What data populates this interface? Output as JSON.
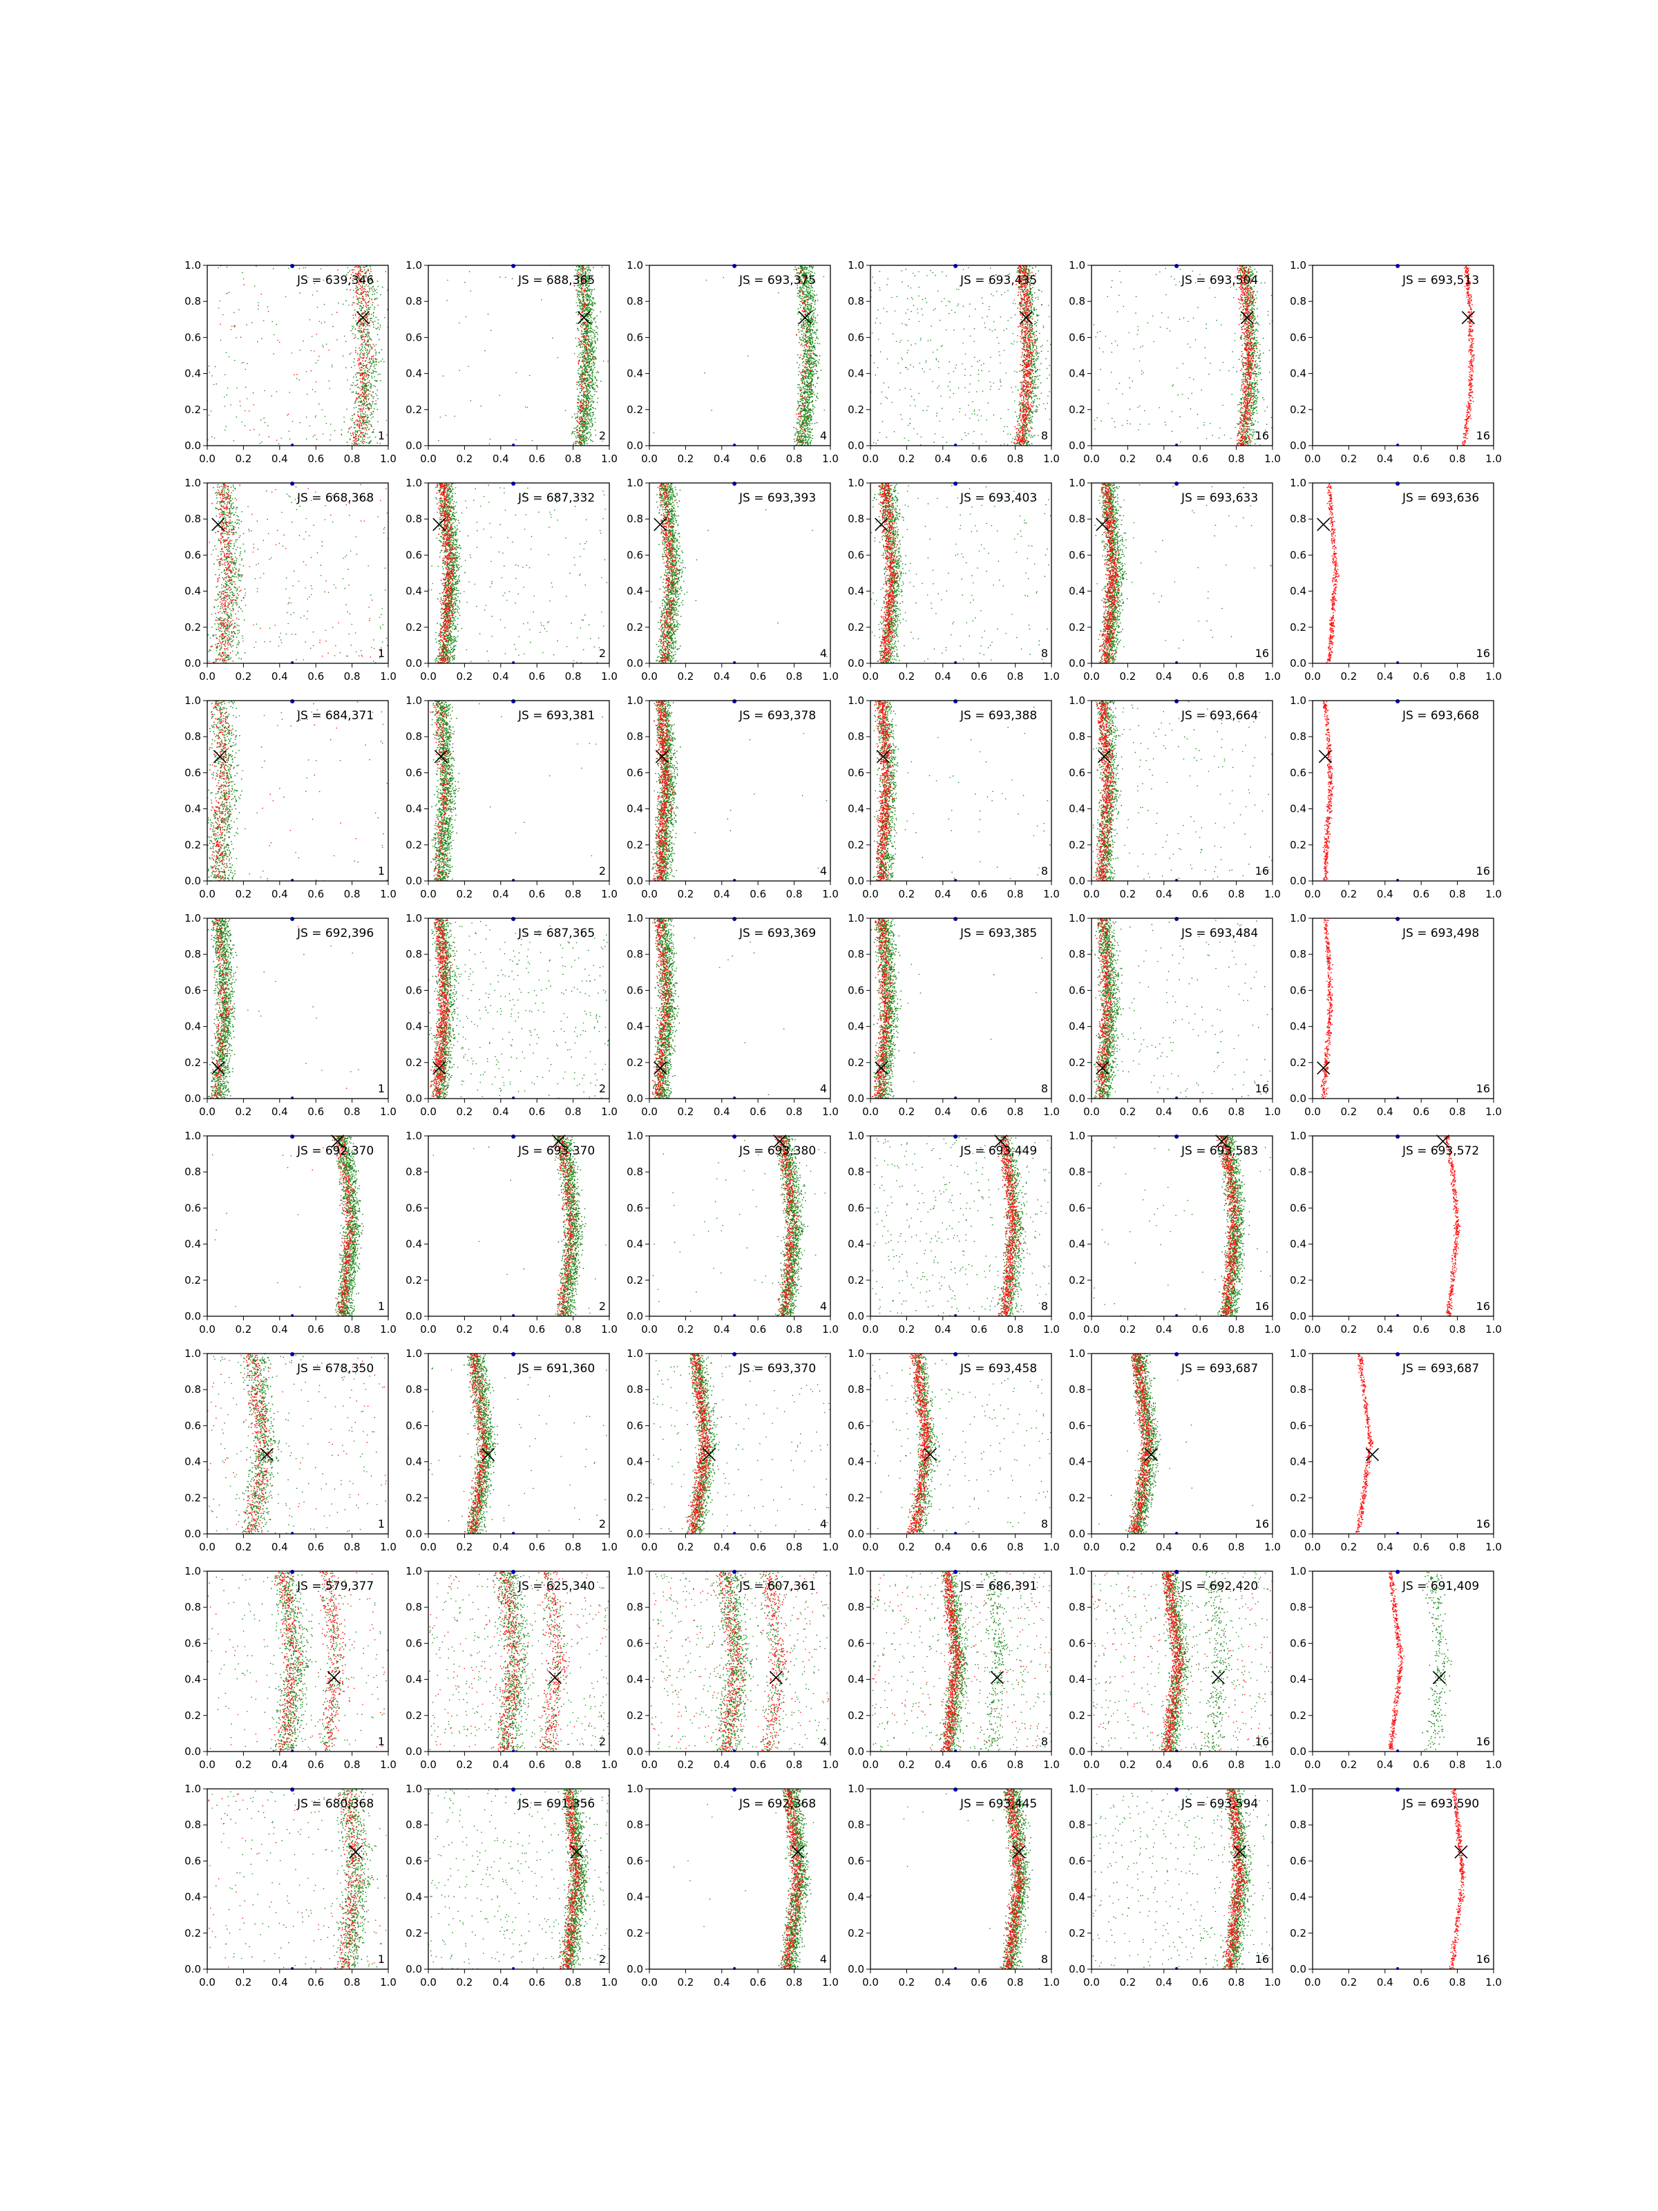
{
  "chart_data": {
    "type": "scatter",
    "grid": false,
    "xlim": [
      0.0,
      1.0
    ],
    "ylim": [
      0.0,
      1.0
    ],
    "ticks": [
      "0.0",
      "0.2",
      "0.4",
      "0.6",
      "0.8",
      "1.0"
    ],
    "colors": {
      "green": "#1a8a1a",
      "red": "#ff1010",
      "marker": "#000000",
      "blue": "#0000cc"
    },
    "columns": [
      "1",
      "2",
      "4",
      "8",
      "16",
      "16"
    ],
    "rows": [
      {
        "cross": [
          0.86,
          0.71
        ],
        "curve": [
          0.83,
          0.86,
          0.87,
          0.86,
          0.84
        ],
        "second": null,
        "panels": [
          {
            "js": "JS = 639,346",
            "n": "1",
            "g": 0.9,
            "r": 0.9,
            "density": "sparse",
            "bg": "mid"
          },
          {
            "js": "JS = 688,365",
            "n": "2",
            "g": 1.0,
            "r": 0.3,
            "density": "dense",
            "bg": "low"
          },
          {
            "js": "JS = 693,375",
            "n": "4",
            "g": 1.0,
            "r": 0.2,
            "density": "dense",
            "bg": "vlow"
          },
          {
            "js": "JS = 693,435",
            "n": "8",
            "g": 0.6,
            "r": 1.0,
            "density": "dense",
            "bg": "high"
          },
          {
            "js": "JS = 693,504",
            "n": "16",
            "g": 0.7,
            "r": 0.9,
            "density": "dense",
            "bg": "mid"
          },
          {
            "js": "JS = 693,513",
            "n": "16",
            "g": 0.0,
            "r": 1.0,
            "density": "thin",
            "bg": "none"
          }
        ]
      },
      {
        "cross": [
          0.06,
          0.77
        ],
        "curve": [
          0.08,
          0.1,
          0.12,
          0.1,
          0.08
        ],
        "second": null,
        "panels": [
          {
            "js": "JS = 668,368",
            "n": "1",
            "g": 0.9,
            "r": 0.9,
            "density": "sparse",
            "bg": "mid"
          },
          {
            "js": "JS = 687,332",
            "n": "2",
            "g": 1.0,
            "r": 0.9,
            "density": "dense",
            "bg": "mid"
          },
          {
            "js": "JS = 693,393",
            "n": "4",
            "g": 1.0,
            "r": 0.6,
            "density": "dense",
            "bg": "vlow"
          },
          {
            "js": "JS = 693,403",
            "n": "8",
            "g": 0.8,
            "r": 1.0,
            "density": "dense",
            "bg": "mid"
          },
          {
            "js": "JS = 693,633",
            "n": "16",
            "g": 1.0,
            "r": 1.0,
            "density": "dense",
            "bg": "low"
          },
          {
            "js": "JS = 693,636",
            "n": "16",
            "g": 0.0,
            "r": 1.0,
            "density": "thin",
            "bg": "none"
          }
        ]
      },
      {
        "cross": [
          0.07,
          0.69
        ],
        "curve": [
          0.06,
          0.07,
          0.09,
          0.08,
          0.06
        ],
        "second": null,
        "panels": [
          {
            "js": "JS = 684,371",
            "n": "1",
            "g": 1.0,
            "r": 0.8,
            "density": "sparse",
            "bg": "low"
          },
          {
            "js": "JS = 693,381",
            "n": "2",
            "g": 1.0,
            "r": 0.4,
            "density": "dense",
            "bg": "vlow"
          },
          {
            "js": "JS = 693,378",
            "n": "4",
            "g": 1.0,
            "r": 1.0,
            "density": "dense",
            "bg": "vlow"
          },
          {
            "js": "JS = 693,388",
            "n": "8",
            "g": 0.7,
            "r": 1.0,
            "density": "dense",
            "bg": "low"
          },
          {
            "js": "JS = 693,664",
            "n": "16",
            "g": 0.7,
            "r": 1.0,
            "density": "dense",
            "bg": "mid"
          },
          {
            "js": "JS = 693,668",
            "n": "16",
            "g": 0.0,
            "r": 1.0,
            "density": "thin",
            "bg": "none"
          }
        ]
      },
      {
        "cross": [
          0.06,
          0.17
        ],
        "curve": [
          0.05,
          0.07,
          0.09,
          0.08,
          0.06
        ],
        "second": null,
        "panels": [
          {
            "js": "JS = 692,396",
            "n": "1",
            "g": 1.0,
            "r": 0.4,
            "density": "dense",
            "bg": "vlow"
          },
          {
            "js": "JS = 687,365",
            "n": "2",
            "g": 0.8,
            "r": 1.0,
            "density": "dense",
            "bg": "high"
          },
          {
            "js": "JS = 693,369",
            "n": "4",
            "g": 1.0,
            "r": 0.7,
            "density": "dense",
            "bg": "vlow"
          },
          {
            "js": "JS = 693,385",
            "n": "8",
            "g": 1.0,
            "r": 0.8,
            "density": "dense",
            "bg": "vlow"
          },
          {
            "js": "JS = 693,484",
            "n": "16",
            "g": 1.0,
            "r": 0.7,
            "density": "dense",
            "bg": "mid"
          },
          {
            "js": "JS = 693,498",
            "n": "16",
            "g": 0.0,
            "r": 1.0,
            "density": "thin",
            "bg": "none"
          }
        ]
      },
      {
        "cross": [
          0.72,
          0.97
        ],
        "curve": [
          0.74,
          0.77,
          0.79,
          0.77,
          0.73
        ],
        "second": null,
        "panels": [
          {
            "js": "JS = 692,370",
            "n": "1",
            "g": 1.0,
            "r": 0.6,
            "density": "dense",
            "bg": "vlow"
          },
          {
            "js": "JS = 693,370",
            "n": "2",
            "g": 1.0,
            "r": 0.6,
            "density": "dense",
            "bg": "vlow"
          },
          {
            "js": "JS = 693,380",
            "n": "4",
            "g": 1.0,
            "r": 0.7,
            "density": "dense",
            "bg": "low"
          },
          {
            "js": "JS = 693,449",
            "n": "8",
            "g": 0.6,
            "r": 1.0,
            "density": "dense",
            "bg": "high"
          },
          {
            "js": "JS = 693,583",
            "n": "16",
            "g": 1.0,
            "r": 0.9,
            "density": "dense",
            "bg": "low"
          },
          {
            "js": "JS = 693,572",
            "n": "16",
            "g": 0.0,
            "r": 1.0,
            "density": "thin",
            "bg": "none"
          }
        ]
      },
      {
        "cross": [
          0.33,
          0.44
        ],
        "curve": [
          0.24,
          0.28,
          0.31,
          0.28,
          0.25
        ],
        "second": null,
        "panels": [
          {
            "js": "JS = 678,350",
            "n": "1",
            "g": 1.0,
            "r": 0.9,
            "density": "sparse",
            "bg": "mid"
          },
          {
            "js": "JS = 691,360",
            "n": "2",
            "g": 1.0,
            "r": 0.7,
            "density": "dense",
            "bg": "low"
          },
          {
            "js": "JS = 693,370",
            "n": "4",
            "g": 0.8,
            "r": 1.0,
            "density": "dense",
            "bg": "mid"
          },
          {
            "js": "JS = 693,458",
            "n": "8",
            "g": 0.6,
            "r": 1.0,
            "density": "dense",
            "bg": "mid"
          },
          {
            "js": "JS = 693,687",
            "n": "16",
            "g": 1.0,
            "r": 1.0,
            "density": "dense",
            "bg": "vlow"
          },
          {
            "js": "JS = 693,687",
            "n": "16",
            "g": 0.0,
            "r": 1.0,
            "density": "thin",
            "bg": "none"
          }
        ]
      },
      {
        "cross": [
          0.7,
          0.41
        ],
        "curve": [
          0.42,
          0.45,
          0.48,
          0.45,
          0.42
        ],
        "second": [
          0.66,
          0.69,
          0.72,
          0.69,
          0.66
        ],
        "panels": [
          {
            "js": "JS = 579,377",
            "n": "1",
            "g": 1.0,
            "r": 0.9,
            "density": "sparse",
            "bg": "mid"
          },
          {
            "js": "JS = 625,340",
            "n": "2",
            "g": 1.0,
            "r": 1.0,
            "density": "sparse",
            "bg": "high"
          },
          {
            "js": "JS = 607,361",
            "n": "4",
            "g": 1.0,
            "r": 1.0,
            "density": "sparse",
            "bg": "high"
          },
          {
            "js": "JS = 686,391",
            "n": "8",
            "g": 0.7,
            "r": 1.0,
            "density": "dense",
            "bg": "high"
          },
          {
            "js": "JS = 692,420",
            "n": "16",
            "g": 0.7,
            "r": 1.0,
            "density": "dense",
            "bg": "high"
          },
          {
            "js": "JS = 691,409",
            "n": "16",
            "g": 0.0,
            "r": 1.0,
            "density": "thin",
            "bg": "none"
          }
        ]
      },
      {
        "cross": [
          0.82,
          0.65
        ],
        "curve": [
          0.76,
          0.79,
          0.82,
          0.8,
          0.77
        ],
        "second": null,
        "panels": [
          {
            "js": "JS = 680,368",
            "n": "1",
            "g": 1.0,
            "r": 0.9,
            "density": "sparse",
            "bg": "mid"
          },
          {
            "js": "JS = 691,356",
            "n": "2",
            "g": 1.0,
            "r": 0.8,
            "density": "dense",
            "bg": "high"
          },
          {
            "js": "JS = 692,368",
            "n": "4",
            "g": 1.0,
            "r": 0.8,
            "density": "dense",
            "bg": "vlow"
          },
          {
            "js": "JS = 693,445",
            "n": "8",
            "g": 1.0,
            "r": 1.0,
            "density": "dense",
            "bg": "vlow"
          },
          {
            "js": "JS = 693,594",
            "n": "16",
            "g": 0.8,
            "r": 1.0,
            "density": "dense",
            "bg": "high"
          },
          {
            "js": "JS = 693,590",
            "n": "16",
            "g": 0.0,
            "r": 1.0,
            "density": "thin",
            "bg": "none"
          }
        ]
      }
    ]
  }
}
